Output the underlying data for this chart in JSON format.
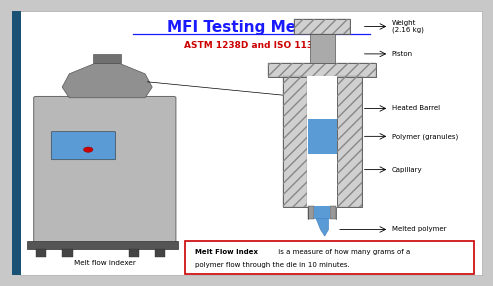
{
  "title": "MFI Testing Method",
  "subtitle": "ASTM 1238D and ISO 1133",
  "title_color": "#1a1aff",
  "subtitle_color": "#cc0000",
  "label_weight": "Weight\n(2.16 kg)",
  "label_piston": "Piston",
  "label_barrel": "Heated Barrel",
  "label_polymer": "Polymer (granules)",
  "label_capillary": "Capillary",
  "label_melted": "Melted polymer",
  "label_indexer": "Melt flow indexer",
  "definition_bold": "Melt Flow Index",
  "definition_rest1": " is a measure of how many grams of a",
  "definition_rest2": "polymer flow through the die in 10 minutes.",
  "border_color": "#cc0000"
}
